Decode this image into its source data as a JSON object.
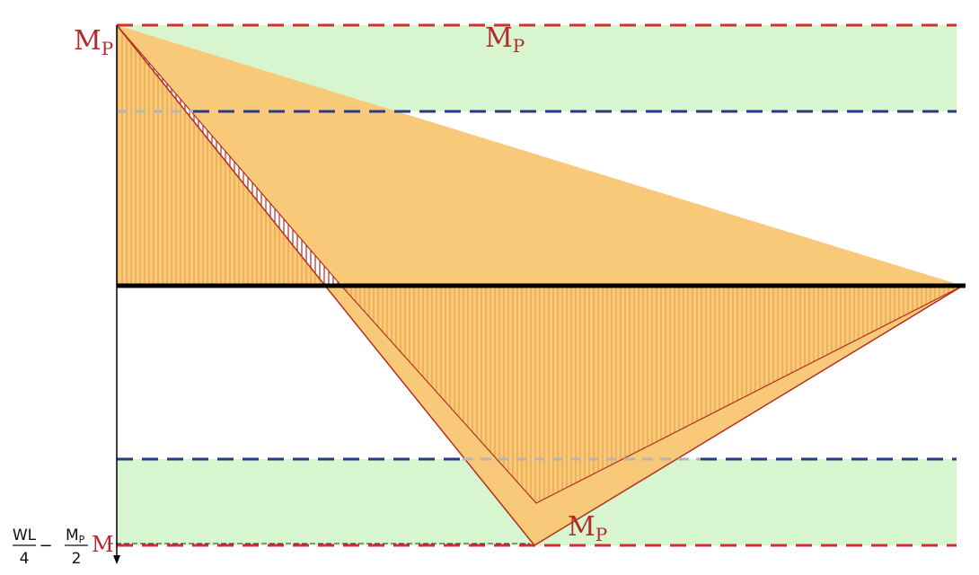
{
  "labels": {
    "mp_top_left": {
      "main": "M",
      "sub": "P"
    },
    "mp_top_center": {
      "main": "M",
      "sub": "P"
    },
    "mp_bottom": {
      "main": "M",
      "sub": "P"
    },
    "formula": {
      "frac1_num": "WL",
      "frac1_den": "4",
      "minus": "−",
      "frac2_num": "M",
      "frac2_num_sub": "P",
      "frac2_den": "2",
      "equals": "=",
      "result": "M"
    }
  },
  "colors": {
    "plastic_limit_line": "#d03030",
    "yield_limit_line": "#2a3a8a",
    "plastic_band": "#d7f5cf",
    "moment_fill": "#f9c97a",
    "hatch": "#e59a3a",
    "outline": "#b33020",
    "axis": "#000000",
    "label": "#b32a2a"
  }
}
